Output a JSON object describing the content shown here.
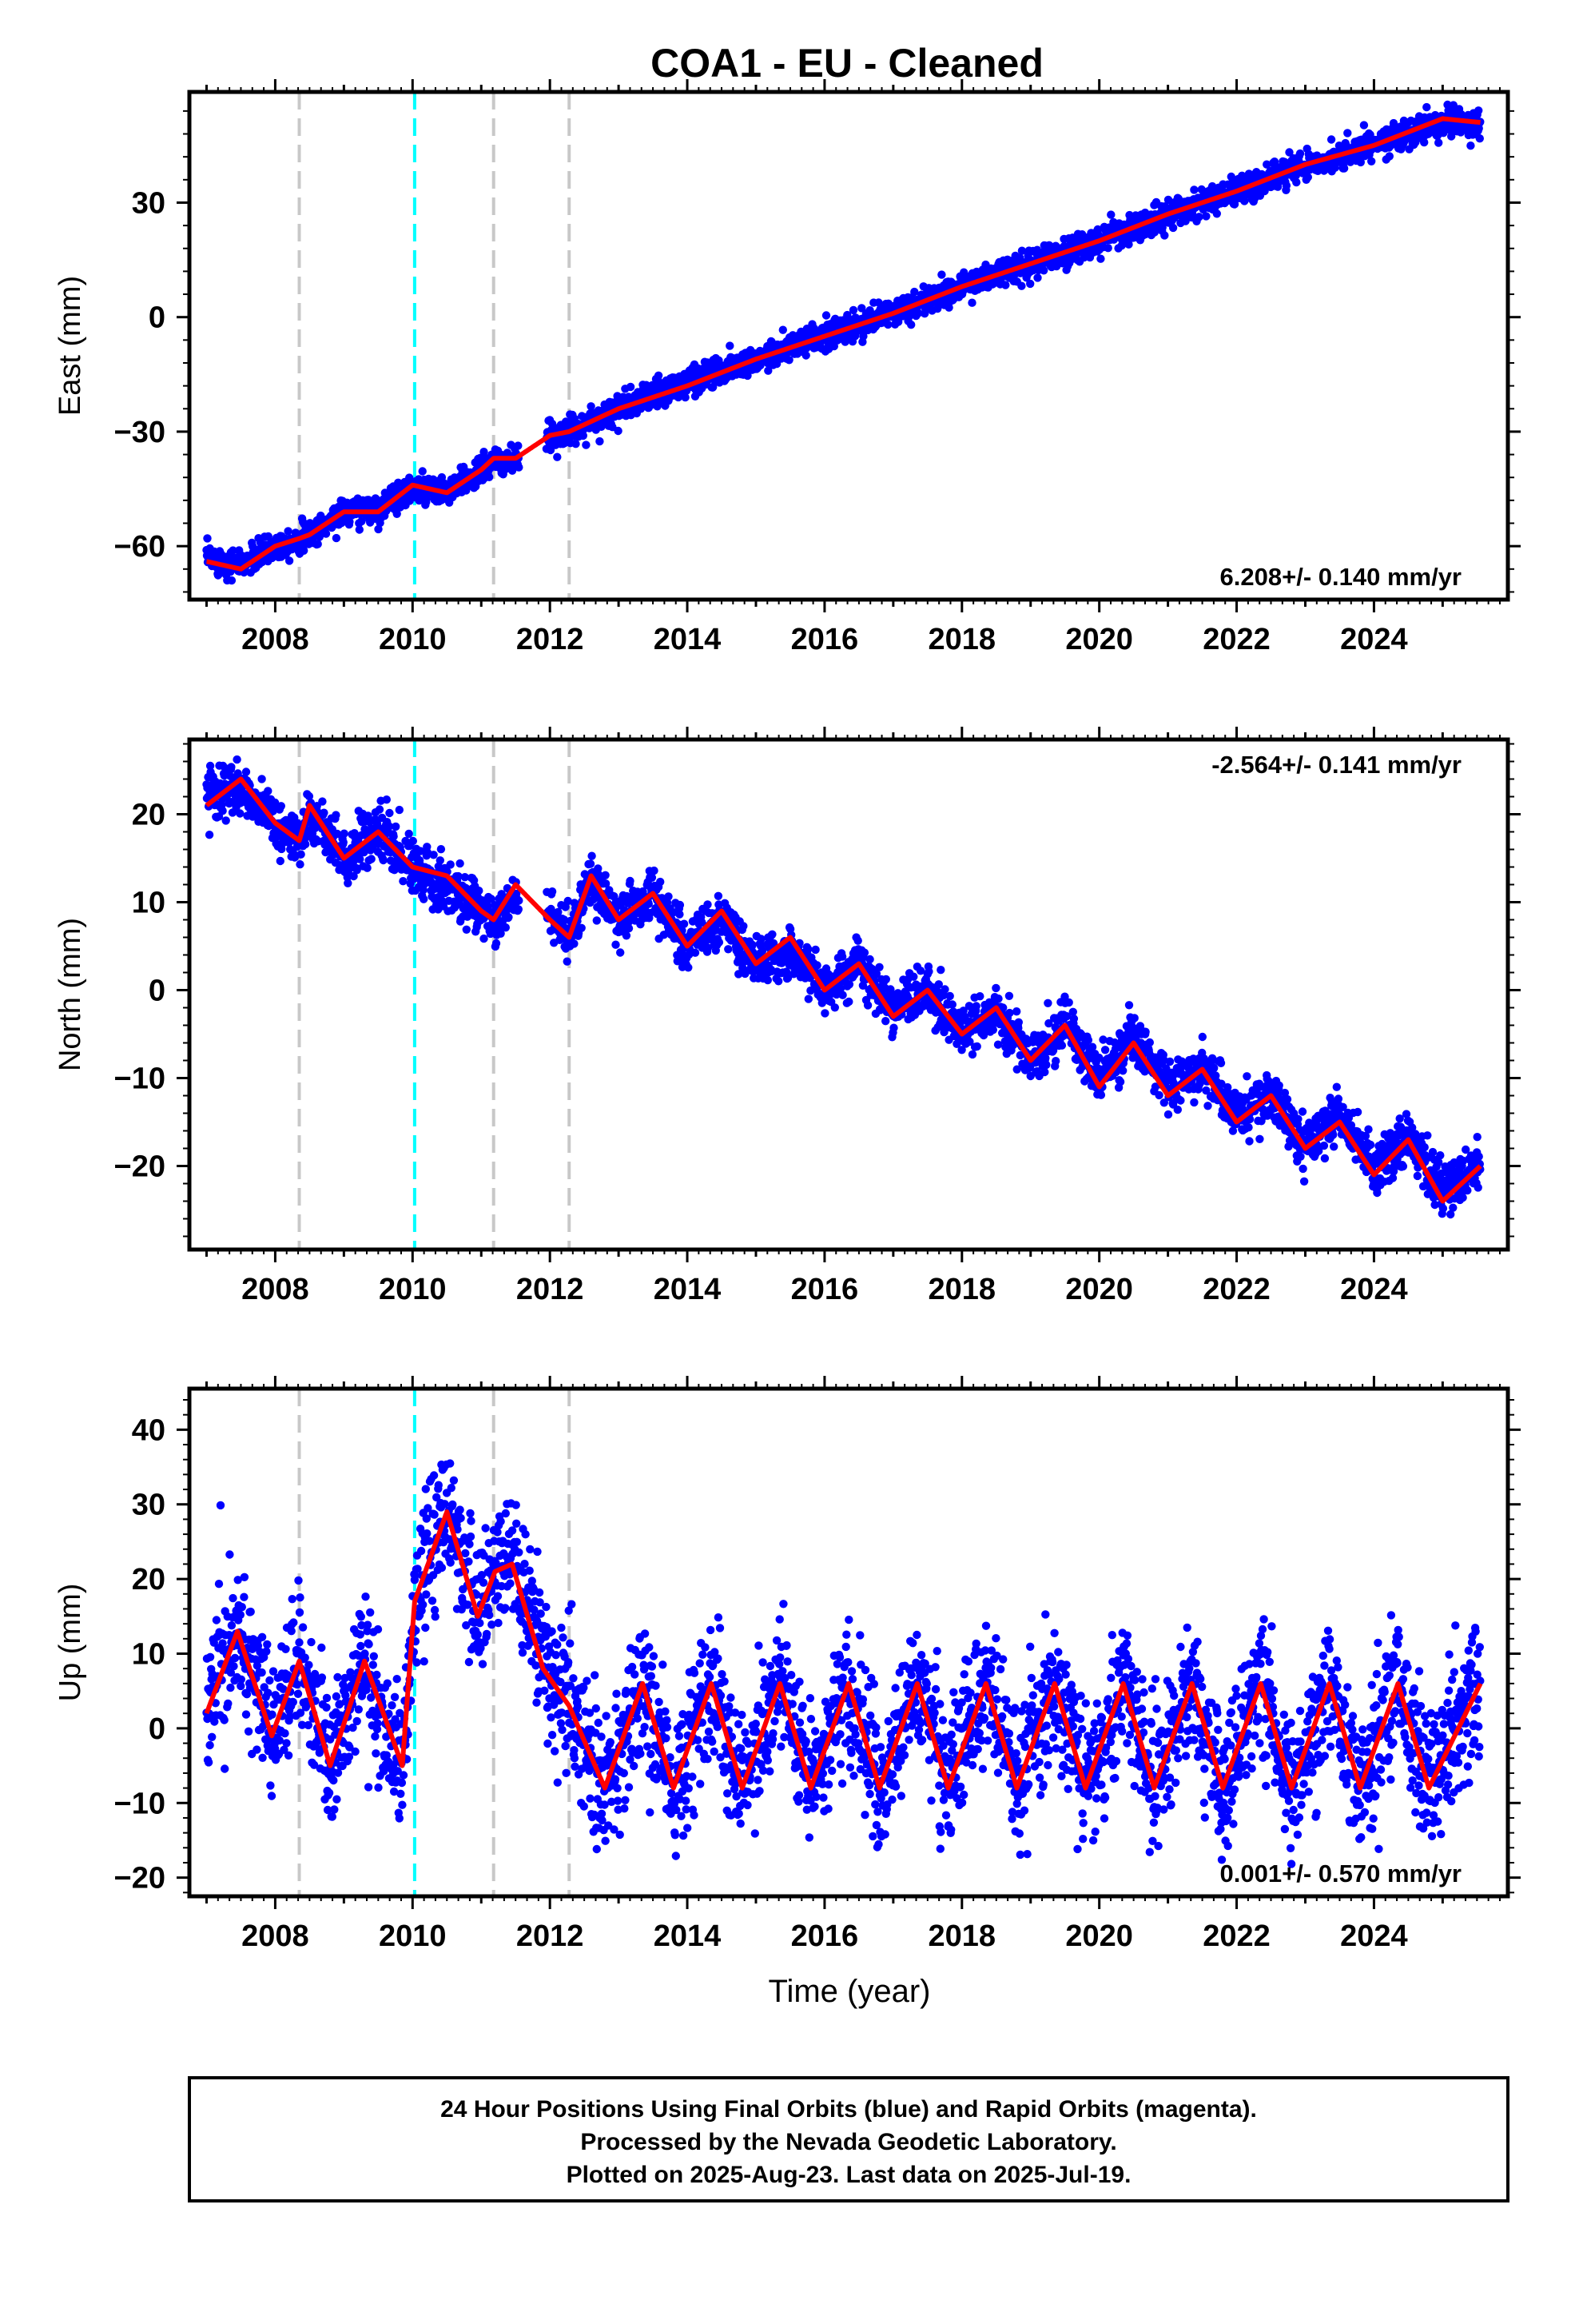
{
  "title": "COA1  - EU - Cleaned",
  "x_axis": {
    "label": "Time (year)",
    "ticks": [
      2008,
      2010,
      2012,
      2014,
      2016,
      2018,
      2020,
      2022,
      2024
    ],
    "range": [
      2006.75,
      2025.95
    ]
  },
  "colors": {
    "data": "#0000ff",
    "model": "#ff0000",
    "event_line": "#c8c8c8",
    "antenna_line": "#00ffff"
  },
  "vertical_lines": [
    {
      "x": 2008.35,
      "color": "gray"
    },
    {
      "x": 2010.03,
      "color": "cyan"
    },
    {
      "x": 2011.18,
      "color": "gray"
    },
    {
      "x": 2012.28,
      "color": "gray"
    }
  ],
  "chart_data": [
    {
      "type": "scatter",
      "name": "east",
      "ylabel": "East (mm)",
      "ylim": [
        -74,
        59
      ],
      "yticks": [
        -60,
        -30,
        0,
        30
      ],
      "rate_label": "6.208+/- 0.140 mm/yr",
      "rate_position": "bottom-right",
      "series": [
        {
          "name": "Final Orbits",
          "color": "#0000ff",
          "x": [
            2007.0,
            2007.5,
            2008.0,
            2008.35,
            2008.5,
            2009.0,
            2009.5,
            2010.0,
            2010.5,
            2011.0,
            2011.18,
            2011.5,
            2012.0,
            2012.28,
            2013.0,
            2014.0,
            2015.0,
            2016.0,
            2017.0,
            2018.0,
            2019.0,
            2020.0,
            2021.0,
            2022.0,
            2023.0,
            2024.0,
            2025.0,
            2025.55
          ],
          "y": [
            -63,
            -65,
            -60,
            -58,
            -57,
            -51,
            -50,
            -45,
            -46,
            -40,
            -38,
            -38,
            -31,
            -30,
            -24,
            -17,
            -11,
            -5,
            1,
            8,
            14,
            20,
            27,
            33,
            40,
            45,
            51,
            50
          ]
        },
        {
          "name": "Model",
          "color": "#ff0000",
          "x": [
            2007.0,
            2007.5,
            2008.0,
            2008.35,
            2008.5,
            2009.0,
            2009.5,
            2010.0,
            2010.5,
            2011.0,
            2011.18,
            2011.5,
            2012.0,
            2012.28,
            2013.0,
            2014.0,
            2015.0,
            2016.0,
            2017.0,
            2018.0,
            2019.0,
            2020.0,
            2021.0,
            2022.0,
            2023.0,
            2024.0,
            2025.0,
            2025.55
          ],
          "y": [
            -64,
            -66,
            -60,
            -58,
            -57,
            -51,
            -51,
            -44,
            -46,
            -40,
            -37,
            -37,
            -31,
            -30,
            -24,
            -18,
            -11,
            -5,
            1,
            8,
            14,
            20,
            27,
            33,
            40,
            45,
            52,
            51
          ]
        }
      ]
    },
    {
      "type": "scatter",
      "name": "north",
      "ylabel": "North (mm)",
      "ylim": [
        -29.5,
        28.5
      ],
      "yticks": [
        -20,
        -10,
        0,
        10,
        20
      ],
      "rate_label": "-2.564+/- 0.141 mm/yr",
      "rate_position": "top-right",
      "series": [
        {
          "name": "Final Orbits",
          "color": "#0000ff",
          "x": [
            2007.0,
            2007.5,
            2008.0,
            2008.35,
            2008.5,
            2009.0,
            2009.5,
            2010.0,
            2010.5,
            2011.0,
            2011.18,
            2011.5,
            2012.0,
            2012.28,
            2012.6,
            2013.0,
            2013.5,
            2014.0,
            2014.5,
            2015.0,
            2015.5,
            2016.0,
            2016.5,
            2017.0,
            2017.5,
            2018.0,
            2018.5,
            2019.0,
            2019.5,
            2020.0,
            2020.5,
            2021.0,
            2021.5,
            2022.0,
            2022.5,
            2023.0,
            2023.5,
            2024.0,
            2024.5,
            2025.0,
            2025.55
          ],
          "y": [
            22,
            23,
            19,
            17,
            20,
            15,
            18,
            14,
            12,
            9,
            7,
            11,
            8,
            6,
            13,
            8,
            11,
            5,
            8,
            3,
            5,
            0,
            3,
            -2,
            0,
            -5,
            -2,
            -8,
            -4,
            -10,
            -5,
            -11,
            -9,
            -14,
            -12,
            -18,
            -14,
            -20,
            -17,
            -23,
            -20
          ]
        },
        {
          "name": "Model",
          "color": "#ff0000",
          "x": [
            2007.0,
            2007.5,
            2008.0,
            2008.35,
            2008.5,
            2009.0,
            2009.5,
            2010.0,
            2010.5,
            2011.0,
            2011.18,
            2011.5,
            2012.0,
            2012.28,
            2012.6,
            2013.0,
            2013.5,
            2014.0,
            2014.5,
            2015.0,
            2015.5,
            2016.0,
            2016.5,
            2017.0,
            2017.5,
            2018.0,
            2018.5,
            2019.0,
            2019.5,
            2020.0,
            2020.5,
            2021.0,
            2021.5,
            2022.0,
            2022.5,
            2023.0,
            2023.5,
            2024.0,
            2024.5,
            2025.0,
            2025.55
          ],
          "y": [
            21,
            24,
            19,
            17,
            21,
            15,
            18,
            14,
            13,
            9,
            8,
            12,
            8,
            6,
            13,
            8,
            11,
            5,
            9,
            3,
            6,
            0,
            3,
            -3,
            0,
            -5,
            -2,
            -8,
            -4,
            -11,
            -6,
            -12,
            -9,
            -15,
            -12,
            -18,
            -15,
            -21,
            -17,
            -24,
            -20
          ]
        }
      ]
    },
    {
      "type": "scatter",
      "name": "up",
      "ylabel": "Up (mm)",
      "ylim": [
        -22.5,
        45.5
      ],
      "yticks": [
        -20,
        -10,
        0,
        10,
        20,
        30,
        40
      ],
      "rate_label": "0.001+/- 0.570 mm/yr",
      "rate_position": "bottom-right",
      "series": [
        {
          "name": "Final Orbits",
          "color": "#0000ff",
          "x": [
            2007.0,
            2007.45,
            2007.95,
            2008.35,
            2008.8,
            2009.3,
            2009.85,
            2010.03,
            2010.5,
            2010.95,
            2011.2,
            2011.45,
            2011.9,
            2012.28,
            2012.8,
            2013.35,
            2013.8,
            2014.35,
            2014.8,
            2015.35,
            2015.8,
            2016.35,
            2016.8,
            2017.35,
            2017.8,
            2018.35,
            2018.8,
            2019.35,
            2019.8,
            2020.35,
            2020.8,
            2021.35,
            2021.8,
            2022.35,
            2022.8,
            2023.35,
            2023.8,
            2024.35,
            2024.8,
            2025.55
          ],
          "y": [
            3,
            14,
            -1,
            10,
            -6,
            9,
            -6,
            17,
            30,
            15,
            20,
            24,
            8,
            3,
            -8,
            6,
            -8,
            6,
            -8,
            6,
            -8,
            6,
            -8,
            6,
            -8,
            6,
            -8,
            6,
            -8,
            6,
            -8,
            6,
            -8,
            6,
            -8,
            6,
            -8,
            6,
            -8,
            6
          ]
        },
        {
          "name": "Model",
          "color": "#ff0000",
          "x": [
            2007.0,
            2007.45,
            2007.95,
            2008.35,
            2008.8,
            2009.3,
            2009.85,
            2010.03,
            2010.5,
            2010.95,
            2011.2,
            2011.45,
            2011.9,
            2012.28,
            2012.8,
            2013.35,
            2013.8,
            2014.35,
            2014.8,
            2015.35,
            2015.8,
            2016.35,
            2016.8,
            2017.35,
            2017.8,
            2018.35,
            2018.8,
            2019.35,
            2019.8,
            2020.35,
            2020.8,
            2021.35,
            2021.8,
            2022.35,
            2022.8,
            2023.35,
            2023.8,
            2024.35,
            2024.8,
            2025.55
          ],
          "y": [
            2,
            13,
            -1,
            9,
            -5,
            9,
            -5,
            17,
            29,
            15,
            21,
            22,
            8,
            3,
            -8,
            6,
            -8,
            6,
            -8,
            6,
            -8,
            6,
            -8,
            6,
            -8,
            6,
            -8,
            6,
            -8,
            6,
            -8,
            6,
            -8,
            6,
            -8,
            6,
            -8,
            6,
            -8,
            6
          ]
        }
      ]
    }
  ],
  "footer": {
    "line1": "24 Hour Positions Using Final Orbits (blue) and Rapid Orbits (magenta).",
    "line2": "Processed by the Nevada Geodetic Laboratory.",
    "line3": "Plotted on 2025-Aug-23. Last data on 2025-Jul-19."
  }
}
